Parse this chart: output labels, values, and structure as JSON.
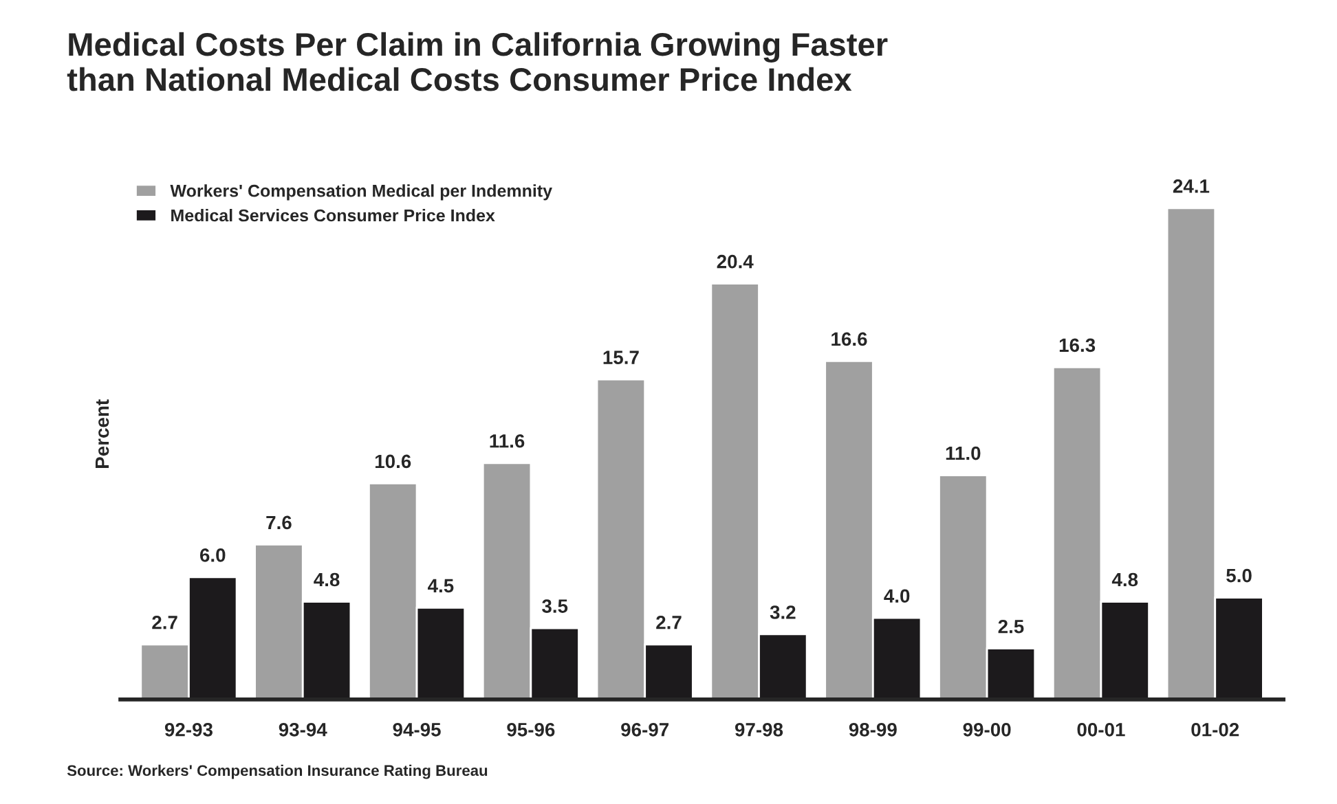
{
  "chart_data": {
    "type": "bar",
    "title": "Medical Costs Per Claim in California Growing Faster\nthan National Medical Costs Consumer Price Index",
    "ylabel": "Percent",
    "categories": [
      "92-93",
      "93-94",
      "94-95",
      "95-96",
      "96-97",
      "97-98",
      "98-99",
      "99-00",
      "00-01",
      "01-02"
    ],
    "series": [
      {
        "name": "Workers' Compensation Medical per Indemnity",
        "color": "#a0a0a0",
        "values": [
          2.7,
          7.6,
          10.6,
          11.6,
          15.7,
          20.4,
          16.6,
          11.0,
          16.3,
          24.1
        ],
        "value_labels": [
          "2.7",
          "7.6",
          "10.6",
          "11.6",
          "15.7",
          "20.4",
          "16.6",
          "11.0",
          "16.3",
          "24.1"
        ]
      },
      {
        "name": "Medical Services Consumer Price Index",
        "color": "#1c1a1c",
        "values": [
          6.0,
          4.8,
          4.5,
          3.5,
          2.7,
          3.2,
          4.0,
          2.5,
          4.8,
          5.0
        ],
        "value_labels": [
          "6.0",
          "4.8",
          "4.5",
          "3.5",
          "2.7",
          "3.2",
          "4.0",
          "2.5",
          "4.8",
          "5.0"
        ]
      }
    ],
    "annotations": [
      "Source: Workers' Compensation Insurance Rating Bureau"
    ],
    "legend": "top left",
    "grid": false,
    "tick_labels": "x"
  }
}
